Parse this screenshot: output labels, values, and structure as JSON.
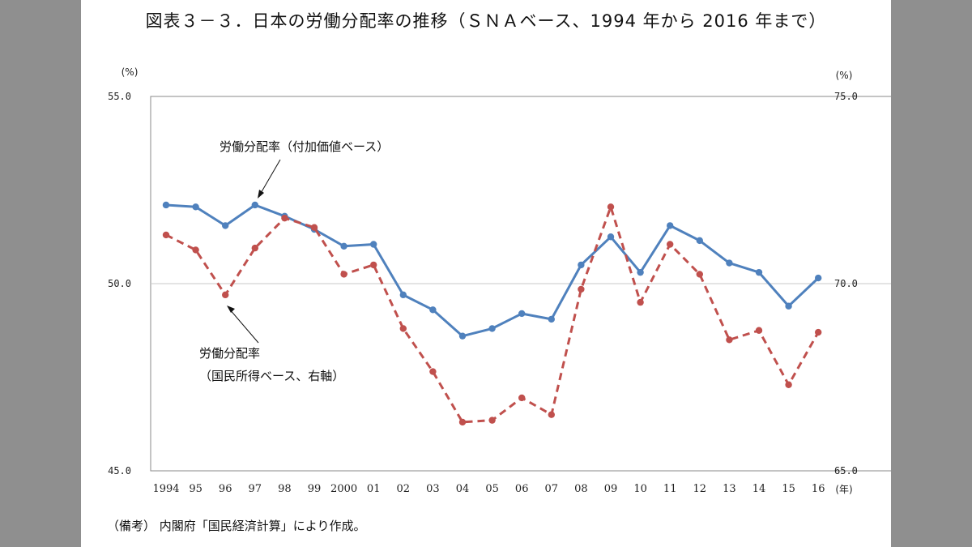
{
  "title": "図表３－３．日本の労働分配率の推移（ＳＮＡベース、1994 年から 2016 年まで）",
  "note": "（備考） 内閣府「国民経済計算」により作成。",
  "chart_data": {
    "type": "line",
    "categories": [
      "1994",
      "95",
      "96",
      "97",
      "98",
      "99",
      "2000",
      "01",
      "02",
      "03",
      "04",
      "05",
      "06",
      "07",
      "08",
      "09",
      "10",
      "11",
      "12",
      "13",
      "14",
      "15",
      "16"
    ],
    "x_unit": "(年)",
    "y_left": {
      "unit": "(%)",
      "range": [
        45.0,
        55.0
      ],
      "ticks": [
        "45.0",
        "50.0",
        "55.0"
      ]
    },
    "y_right": {
      "unit": "(%)",
      "range": [
        65.0,
        75.0
      ],
      "ticks": [
        "65.0",
        "70.0",
        "75.0"
      ]
    },
    "grid": "horizontal line at 50.0 only",
    "series": [
      {
        "name": "労働分配率（付加価値ベース）",
        "axis": "left",
        "style": "solid",
        "color": "#4f81bd",
        "values": [
          52.1,
          52.05,
          51.55,
          52.1,
          51.8,
          51.45,
          51.0,
          51.05,
          49.7,
          49.3,
          48.6,
          48.8,
          49.2,
          49.05,
          50.5,
          51.25,
          50.3,
          51.55,
          51.15,
          50.55,
          50.3,
          49.4,
          50.15
        ]
      },
      {
        "name": "労働分配率（国民所得ベース、右軸）",
        "axis": "right",
        "style": "dashed",
        "color": "#c0504d",
        "values": [
          71.3,
          70.9,
          69.7,
          70.95,
          71.75,
          71.5,
          70.25,
          70.5,
          68.8,
          67.65,
          66.3,
          66.35,
          66.95,
          66.5,
          69.85,
          72.05,
          69.5,
          71.05,
          70.25,
          68.5,
          68.75,
          67.3,
          68.7
        ]
      }
    ],
    "annotations": {
      "blue_label": "労働分配率（付加価値ベース）",
      "red_label_line1": "労働分配率",
      "red_label_line2": "（国民所得ベース、右軸）"
    }
  }
}
